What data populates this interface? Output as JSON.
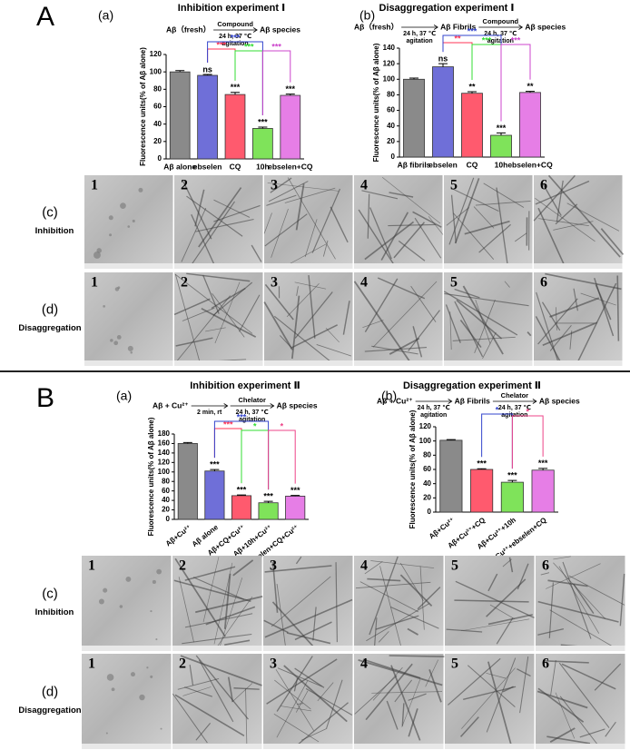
{
  "chart_data": [
    {
      "type": "bar",
      "panel": "(a)",
      "title": "Inhibition experiment Ⅰ",
      "scheme": {
        "start": "Aβ（fresh）",
        "arrows": [
          {
            "above": "Compound",
            "below": [
              "24 h, 37 ℃",
              "agitation"
            ],
            "to": "Aβ species"
          }
        ]
      },
      "ylabel": "Fluorescence units(% of Aβ alone)",
      "categories": [
        "Aβ alone",
        "ebselen",
        "CQ",
        "10h",
        "ebselen+CQ"
      ],
      "values": [
        100,
        96,
        74,
        35,
        73
      ],
      "errors": [
        1.5,
        1,
        2.5,
        1.5,
        1.5
      ],
      "colors": [
        "#8a8a8a",
        "#6f6fd8",
        "#ff5a6e",
        "#7fe35a",
        "#e67ee6"
      ],
      "significance_marks": [
        null,
        "ns",
        "***",
        "***",
        "***"
      ],
      "comparisons": [
        {
          "bars": [
            1,
            2
          ],
          "label": "***",
          "color": "#ff3355"
        },
        {
          "bars": [
            2,
            3
          ],
          "label": "***",
          "color": "#33dd33"
        },
        {
          "bars": [
            1,
            3
          ],
          "label": "***",
          "color": "#3344cc"
        },
        {
          "bars": [
            3,
            4
          ],
          "label": "***",
          "color": "#cc44cc"
        }
      ],
      "ylim": [
        0,
        120
      ],
      "yticks": [
        0,
        20,
        40,
        60,
        80,
        100,
        120
      ]
    },
    {
      "type": "bar",
      "panel": "(b)",
      "title": "Disaggregation experiment Ⅰ",
      "scheme": {
        "start": "Aβ（fresh）",
        "arrows": [
          {
            "below": [
              "24 h, 37 ℃",
              "agitation"
            ],
            "to": "Aβ Fibrils"
          },
          {
            "above": "Compound",
            "below": [
              "24 h, 37 ℃",
              "agitation"
            ],
            "to": "Aβ species"
          }
        ]
      },
      "ylabel": "Fluorescence units(% of Aβ alone)",
      "categories": [
        "Aβ fibrils",
        "ebselen",
        "CQ",
        "10h",
        "ebselen+CQ"
      ],
      "values": [
        100,
        116,
        82,
        28,
        83
      ],
      "errors": [
        1.5,
        4,
        2,
        3,
        1.5
      ],
      "colors": [
        "#8a8a8a",
        "#6f6fd8",
        "#ff5a6e",
        "#7fe35a",
        "#e67ee6"
      ],
      "significance_marks": [
        null,
        "ns",
        "**",
        "***",
        "**"
      ],
      "comparisons": [
        {
          "bars": [
            1,
            2
          ],
          "label": "**",
          "color": "#ff3355"
        },
        {
          "bars": [
            2,
            3
          ],
          "label": "***",
          "color": "#33dd33"
        },
        {
          "bars": [
            1,
            3
          ],
          "label": "***",
          "color": "#3344cc"
        },
        {
          "bars": [
            3,
            4
          ],
          "label": "***",
          "color": "#cc44cc"
        }
      ],
      "ylim": [
        0,
        140
      ],
      "yticks": [
        0,
        20,
        40,
        60,
        80,
        100,
        120,
        140
      ]
    },
    {
      "type": "bar",
      "panel": "(a)",
      "title": "Inhibition experiment Ⅱ",
      "scheme": {
        "start": "Aβ + Cu²⁺",
        "arrows": [
          {
            "below": [
              "2 min, rt"
            ]
          },
          {
            "above": "Chelator",
            "below": [
              "24 h, 37 ℃",
              "agitation"
            ],
            "to": "Aβ species"
          }
        ]
      },
      "ylabel": "Fluorescence units(% of Aβ alone)",
      "categories": [
        "Aβ+Cu²⁺",
        "Aβ alone",
        "Aβ+CQ+Cu²⁺",
        "Aβ+10h+Cu²⁺",
        "Aβ+ebselen+CQ+Cu²⁺"
      ],
      "values": [
        160,
        102,
        50,
        35,
        49
      ],
      "errors": [
        2,
        3,
        1.5,
        3,
        1.5
      ],
      "colors": [
        "#8a8a8a",
        "#6f6fd8",
        "#ff5a6e",
        "#7fe35a",
        "#e67ee6"
      ],
      "significance_marks": [
        null,
        "***",
        "***",
        "***",
        "***"
      ],
      "comparisons": [
        {
          "bars": [
            1,
            2
          ],
          "label": "***",
          "color": "#ff3355"
        },
        {
          "bars": [
            2,
            3
          ],
          "label": "*",
          "color": "#33dd33"
        },
        {
          "bars": [
            1,
            3
          ],
          "label": "***",
          "color": "#3344cc"
        },
        {
          "bars": [
            3,
            4
          ],
          "label": "*",
          "color": "#ee4488"
        }
      ],
      "ylim": [
        0,
        180
      ],
      "yticks": [
        0,
        20,
        40,
        60,
        80,
        100,
        120,
        140,
        160,
        180
      ]
    },
    {
      "type": "bar",
      "panel": "(b)",
      "title": "Disaggregation experiment Ⅱ",
      "scheme": {
        "start": "Aβ + Cu²⁺",
        "arrows": [
          {
            "below": [
              "24 h, 37 ℃",
              "agitation"
            ],
            "to": "Aβ Fibrils"
          },
          {
            "above": "Chelator",
            "below": [
              "24 h, 37 ℃",
              "agitation"
            ],
            "to": "Aβ species"
          }
        ]
      },
      "ylabel": "Fluorescence units(% of Aβ alone)",
      "categories": [
        "Aβ+Cu²⁺",
        "Aβ+Cu²⁺+CQ",
        "Aβ+Cu²⁺+10h",
        "Aβ+Cu²⁺+ebselen+CQ"
      ],
      "values": [
        101,
        60,
        42,
        59
      ],
      "errors": [
        1,
        1,
        2.5,
        2.5
      ],
      "colors": [
        "#8a8a8a",
        "#ff5a6e",
        "#7fe35a",
        "#e67ee6"
      ],
      "significance_marks": [
        null,
        "***",
        "***",
        "***"
      ],
      "comparisons": [
        {
          "bars": [
            1,
            2
          ],
          "label": "*",
          "color": "#3344cc"
        },
        {
          "bars": [
            2,
            3
          ],
          "label": "*",
          "color": "#ee4488"
        }
      ],
      "ylim": [
        0,
        120
      ],
      "yticks": [
        0,
        20,
        40,
        60,
        80,
        100,
        120
      ]
    }
  ],
  "sections": [
    {
      "label": "A"
    },
    {
      "label": "B"
    }
  ],
  "micrographs": [
    {
      "panel": "(c)",
      "row": "Inhibition",
      "images": [
        "1",
        "2",
        "3",
        "4",
        "5",
        "6"
      ]
    },
    {
      "panel": "(d)",
      "row": "Disaggregation",
      "images": [
        "1",
        "2",
        "3",
        "4",
        "5",
        "6"
      ]
    },
    {
      "panel": "(c)",
      "row": "Inhibition",
      "images": [
        "1",
        "2",
        "3",
        "4",
        "5",
        "6"
      ]
    },
    {
      "panel": "(d)",
      "row": "Disaggregation",
      "images": [
        "1",
        "2",
        "3",
        "4",
        "5",
        "6"
      ]
    }
  ]
}
